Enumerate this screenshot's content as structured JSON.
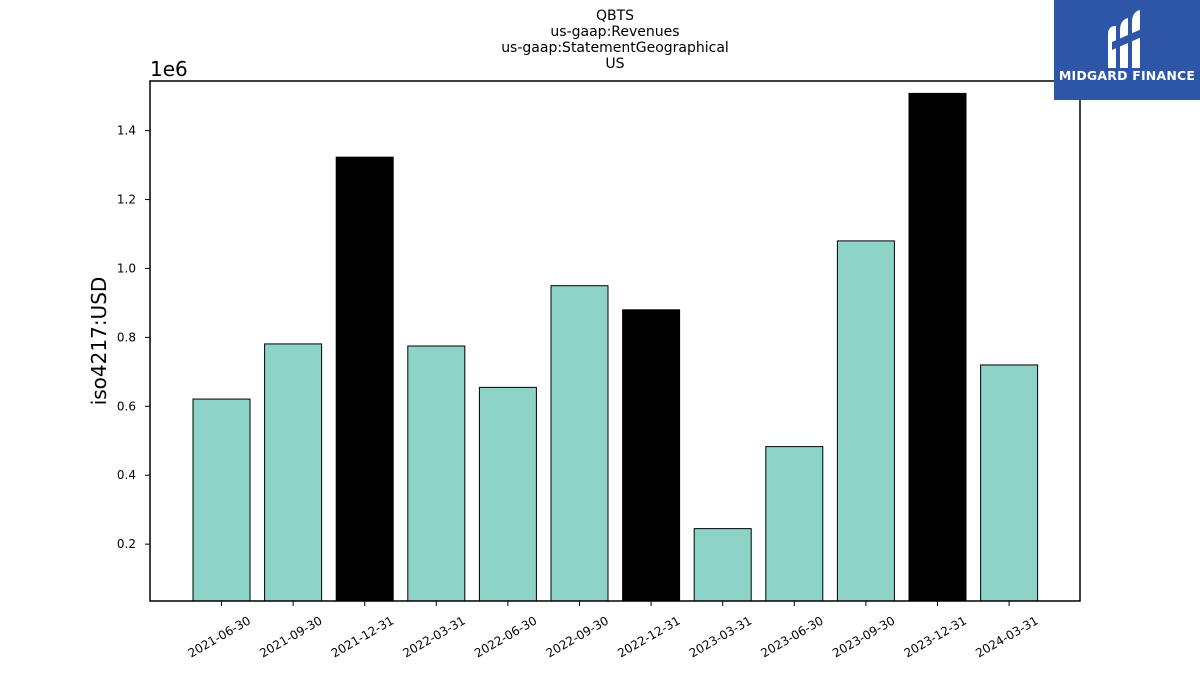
{
  "brand": {
    "name": "MIDGARD FINANCE",
    "logo_icon": "midgard-m-icon",
    "background_color": "#2e56a8"
  },
  "chart_data": {
    "type": "bar",
    "title_lines": [
      "QBTS",
      "us-gaap:Revenues",
      "us-gaap:StatementGeographical",
      "US"
    ],
    "ylabel": "iso4217:USD",
    "y_scale_label": "1e6",
    "categories": [
      "2021-06-30",
      "2021-09-30",
      "2021-12-31",
      "2022-03-31",
      "2022-06-30",
      "2022-09-30",
      "2022-12-31",
      "2023-03-31",
      "2023-06-30",
      "2023-09-30",
      "2023-12-31",
      "2024-03-31"
    ],
    "values": [
      621000,
      781000,
      1323000,
      775000,
      655000,
      950000,
      880000,
      245000,
      483000,
      1080000,
      1508000,
      720000
    ],
    "bar_colors": [
      "#8dd3c7",
      "#8dd3c7",
      "#000000",
      "#8dd3c7",
      "#8dd3c7",
      "#8dd3c7",
      "#000000",
      "#8dd3c7",
      "#8dd3c7",
      "#8dd3c7",
      "#000000",
      "#8dd3c7"
    ],
    "yticks": [
      200000,
      400000,
      600000,
      800000,
      1000000,
      1200000,
      1400000
    ],
    "ytick_labels": [
      "0.2",
      "0.4",
      "0.6",
      "0.8",
      "1.0",
      "1.2",
      "1.4"
    ],
    "ylim": [
      35000,
      1544000
    ],
    "grid": false,
    "legend": "none"
  }
}
